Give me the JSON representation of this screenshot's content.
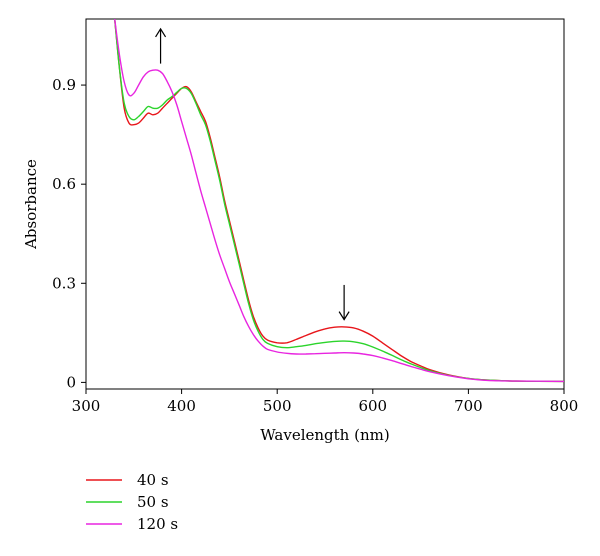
{
  "chart_data": {
    "type": "line",
    "title": "",
    "xlabel": "Wavelength (nm)",
    "ylabel": "Absorbance",
    "xlim": [
      300,
      800
    ],
    "ylim": [
      -0.02,
      1.1
    ],
    "xticks": [
      300,
      400,
      500,
      600,
      700,
      800
    ],
    "xtick_labels": [
      "300",
      "400",
      "500",
      "600",
      "700",
      "800"
    ],
    "yticks": [
      0,
      0.3,
      0.6,
      0.9
    ],
    "ytick_labels": [
      "0",
      "0.3",
      "0.6",
      "0.9"
    ],
    "grid": false,
    "legend_position": "bottom-left, below plot",
    "series": [
      {
        "name": "40 s",
        "color": "#e8161b",
        "x": [
          330,
          335,
          340,
          345,
          350,
          355,
          360,
          365,
          370,
          375,
          380,
          385,
          390,
          395,
          400,
          405,
          410,
          415,
          420,
          425,
          430,
          435,
          440,
          445,
          450,
          455,
          460,
          465,
          470,
          475,
          480,
          485,
          490,
          500,
          510,
          520,
          530,
          540,
          550,
          560,
          570,
          580,
          590,
          600,
          610,
          620,
          630,
          640,
          650,
          660,
          680,
          700,
          720,
          750,
          800
        ],
        "y": [
          1.1,
          0.95,
          0.83,
          0.785,
          0.78,
          0.785,
          0.8,
          0.815,
          0.81,
          0.815,
          0.83,
          0.845,
          0.86,
          0.875,
          0.89,
          0.895,
          0.88,
          0.85,
          0.82,
          0.79,
          0.74,
          0.68,
          0.62,
          0.55,
          0.49,
          0.43,
          0.37,
          0.31,
          0.25,
          0.2,
          0.165,
          0.14,
          0.128,
          0.12,
          0.12,
          0.13,
          0.142,
          0.153,
          0.162,
          0.167,
          0.168,
          0.165,
          0.155,
          0.14,
          0.12,
          0.1,
          0.08,
          0.063,
          0.05,
          0.038,
          0.022,
          0.012,
          0.007,
          0.004,
          0.003
        ]
      },
      {
        "name": "50 s",
        "color": "#2cd42c",
        "x": [
          330,
          335,
          340,
          345,
          350,
          355,
          360,
          365,
          370,
          375,
          380,
          385,
          390,
          395,
          400,
          405,
          410,
          415,
          420,
          425,
          430,
          435,
          440,
          445,
          450,
          455,
          460,
          465,
          470,
          475,
          480,
          485,
          490,
          500,
          510,
          520,
          530,
          540,
          550,
          560,
          570,
          580,
          590,
          600,
          610,
          620,
          630,
          640,
          650,
          660,
          680,
          700,
          720,
          750,
          800
        ],
        "y": [
          1.1,
          0.95,
          0.845,
          0.805,
          0.795,
          0.805,
          0.82,
          0.835,
          0.83,
          0.83,
          0.84,
          0.855,
          0.865,
          0.878,
          0.89,
          0.89,
          0.875,
          0.845,
          0.81,
          0.78,
          0.73,
          0.67,
          0.61,
          0.54,
          0.48,
          0.42,
          0.36,
          0.3,
          0.24,
          0.19,
          0.155,
          0.13,
          0.118,
          0.108,
          0.105,
          0.108,
          0.112,
          0.117,
          0.121,
          0.124,
          0.125,
          0.123,
          0.117,
          0.107,
          0.095,
          0.082,
          0.068,
          0.056,
          0.045,
          0.035,
          0.021,
          0.012,
          0.007,
          0.004,
          0.003
        ]
      },
      {
        "name": "120 s",
        "color": "#e825e0",
        "x": [
          330,
          335,
          340,
          345,
          350,
          355,
          360,
          365,
          370,
          375,
          380,
          385,
          390,
          395,
          400,
          405,
          410,
          415,
          420,
          425,
          430,
          435,
          440,
          445,
          450,
          455,
          460,
          465,
          470,
          475,
          480,
          485,
          490,
          500,
          510,
          520,
          530,
          540,
          550,
          560,
          570,
          580,
          590,
          600,
          610,
          620,
          630,
          640,
          650,
          660,
          680,
          700,
          720,
          750,
          800
        ],
        "y": [
          1.1,
          0.99,
          0.91,
          0.87,
          0.875,
          0.9,
          0.925,
          0.94,
          0.945,
          0.945,
          0.935,
          0.91,
          0.88,
          0.84,
          0.79,
          0.74,
          0.69,
          0.635,
          0.58,
          0.53,
          0.48,
          0.43,
          0.385,
          0.345,
          0.305,
          0.27,
          0.235,
          0.2,
          0.17,
          0.145,
          0.125,
          0.11,
          0.1,
          0.092,
          0.088,
          0.086,
          0.086,
          0.087,
          0.088,
          0.089,
          0.09,
          0.089,
          0.086,
          0.081,
          0.074,
          0.066,
          0.057,
          0.048,
          0.04,
          0.032,
          0.02,
          0.011,
          0.006,
          0.004,
          0.003
        ]
      }
    ],
    "annotations": [
      {
        "type": "arrow-up",
        "x": 378,
        "y_from": 0.965,
        "y_to": 1.07
      },
      {
        "type": "arrow-down",
        "x": 570,
        "y_from": 0.295,
        "y_to": 0.19
      }
    ]
  }
}
